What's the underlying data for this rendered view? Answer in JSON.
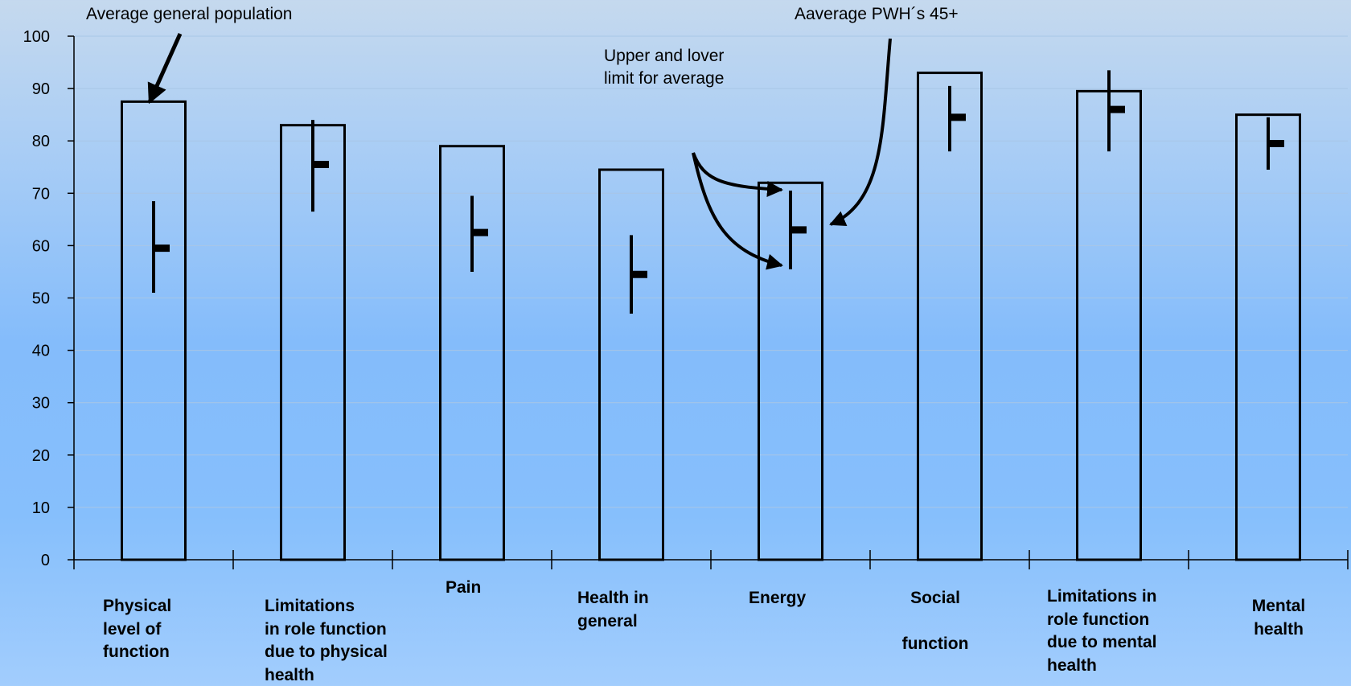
{
  "chart_data": {
    "type": "bar",
    "title": "",
    "xlabel": "",
    "ylabel": "",
    "ylim": [
      0,
      100
    ],
    "yticks": [
      0,
      10,
      20,
      30,
      40,
      50,
      60,
      70,
      80,
      90,
      100
    ],
    "ytick_labels": [
      "0",
      "10",
      "20",
      "30",
      "40",
      "50",
      "60",
      "70",
      "80",
      "90",
      "100"
    ],
    "grid": true,
    "categories": [
      "Physical\nlevel of\nfunction",
      "Limitations\nin role function\ndue to physical\nhealth",
      "Pain",
      "Health in\ngeneral",
      "Energy",
      "Social\n\nfunction",
      "Limitations in\nrole function\ndue to mental\nhealth",
      "Mental\nhealth"
    ],
    "series": [
      {
        "name": "Average general population",
        "type": "bar",
        "values": [
          87.5,
          83,
          79,
          74.5,
          72,
          93,
          89.5,
          85
        ]
      },
      {
        "name": "Aaverage PWH´s 45+",
        "type": "range",
        "values": [
          59.5,
          75.5,
          62.5,
          54.5,
          63,
          84.5,
          86,
          79.5
        ],
        "upper": [
          68.5,
          84,
          69.5,
          62,
          70.5,
          90.5,
          93.5,
          84.5
        ],
        "lower": [
          51,
          66.5,
          55,
          47,
          55.5,
          78,
          78,
          74.5
        ]
      }
    ],
    "annotations": [
      {
        "text": "Average general population",
        "target": "bar"
      },
      {
        "text": "Upper and lover\nlimit for average",
        "target": "range-limits"
      },
      {
        "text": "Aaverage PWH´s 45+",
        "target": "range-mean"
      }
    ]
  },
  "colors": {
    "ink": "#000000",
    "gridline": "#a8c6e6"
  }
}
